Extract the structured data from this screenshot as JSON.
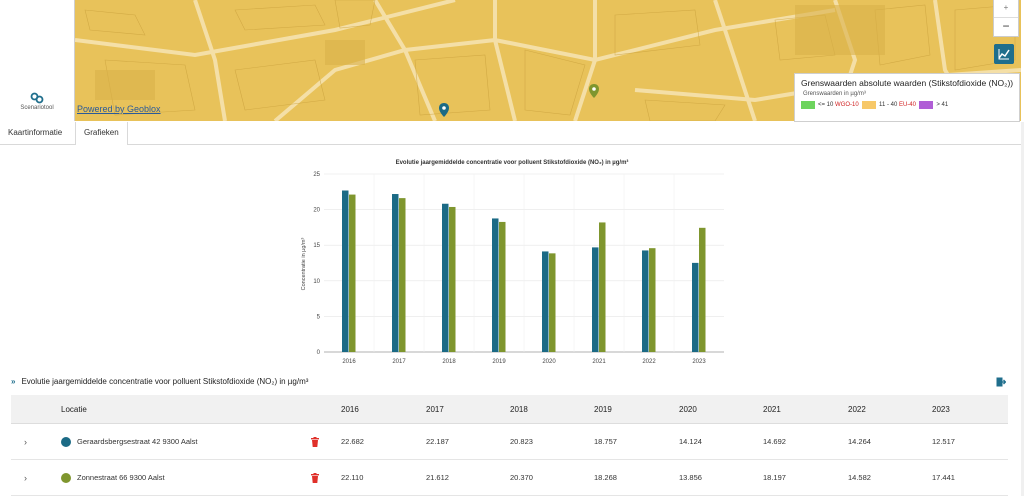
{
  "left_panel": {
    "tool_label": "Scenariotool"
  },
  "map": {
    "attribution": "Powered by Geoblox",
    "zoom_in": "+",
    "zoom_out": "−",
    "legend": {
      "title": "Grenswaarden absolute waarden (Stikstofdioxide (NO₂))",
      "subtitle": "Grenswaarden in µg/m³",
      "items": [
        {
          "swatch": "#6dd45d",
          "range": "<= 10",
          "tag": "WGO-10"
        },
        {
          "swatch": "#f7c868",
          "range": "11 - 40",
          "tag": "EU-40"
        },
        {
          "swatch": "#b05ed6",
          "range": "> 41",
          "tag": ""
        }
      ]
    }
  },
  "tabs": [
    {
      "label": "Kaartinformatie",
      "active": false
    },
    {
      "label": "Grafieken",
      "active": true
    }
  ],
  "chart_data": {
    "type": "bar",
    "title": "Evolutie jaargemiddelde concentratie voor polluent Stikstofdioxide (NO₂) in µg/m³",
    "ylabel": "Concentratie in µg/m³",
    "xlabel": "",
    "ylim": [
      0,
      25
    ],
    "yticks": [
      0,
      5,
      10,
      15,
      20,
      25
    ],
    "grid": true,
    "categories": [
      "2016",
      "2017",
      "2018",
      "2019",
      "2020",
      "2021",
      "2022",
      "2023"
    ],
    "series": [
      {
        "color": "#1b6a85",
        "values": [
          22.682,
          22.187,
          20.823,
          18.757,
          14.124,
          14.692,
          14.264,
          12.517
        ]
      },
      {
        "color": "#7f962e",
        "values": [
          22.11,
          21.612,
          20.37,
          18.268,
          13.856,
          18.197,
          14.582,
          17.441
        ]
      }
    ]
  },
  "section": {
    "title": "Evolutie jaargemiddelde concentratie voor polluent Stikstofdioxide (NO₂) in µg/m³"
  },
  "table": {
    "location_header": "Locatie",
    "years": [
      "2016",
      "2017",
      "2018",
      "2019",
      "2020",
      "2021",
      "2022",
      "2023"
    ],
    "rows": [
      {
        "color": "#1b6a85",
        "location": "Geraardsbergsestraat 42 9300 Aalst",
        "values": [
          "22.682",
          "22.187",
          "20.823",
          "18.757",
          "14.124",
          "14.692",
          "14.264",
          "12.517"
        ]
      },
      {
        "color": "#7f962e",
        "location": "Zonnestraat 66 9300 Aalst",
        "values": [
          "22.110",
          "21.612",
          "20.370",
          "18.268",
          "13.856",
          "18.197",
          "14.582",
          "17.441"
        ]
      }
    ]
  },
  "colors": {
    "accent": "#1f6e8c",
    "delete": "#e0302a",
    "map": "#e8c25a"
  }
}
